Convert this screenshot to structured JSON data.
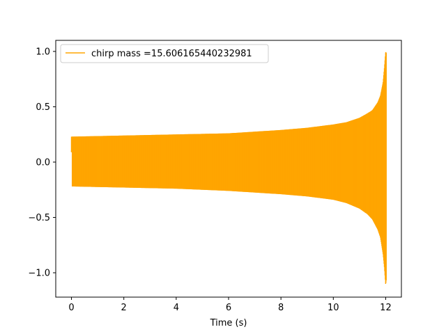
{
  "chart_data": {
    "type": "line",
    "title": "",
    "xlabel": "Time (s)",
    "ylabel": "",
    "xlim": [
      -0.6,
      12.6
    ],
    "ylim": [
      -1.22,
      1.1
    ],
    "x_ticks": [
      0,
      2,
      4,
      6,
      8,
      10,
      12
    ],
    "x_tick_labels": [
      "0",
      "2",
      "4",
      "6",
      "8",
      "10",
      "12"
    ],
    "y_ticks": [
      1.0,
      0.5,
      0.0,
      -0.5,
      -1.0
    ],
    "y_tick_labels": [
      "1.0",
      "0.5",
      "0.0",
      "−0.5",
      "−1.0"
    ],
    "grid": false,
    "legend": "upper-left",
    "series": [
      {
        "name": "chirp mass =15.606165440232981",
        "color": "#ffa500",
        "x_range": [
          0,
          12.03
        ],
        "envelope": {
          "t": [
            0,
            2,
            4,
            6,
            8,
            9,
            10,
            10.5,
            11,
            11.3,
            11.5,
            11.7,
            11.8,
            11.9,
            11.95,
            12.0,
            12.03
          ],
          "upper": [
            0.23,
            0.24,
            0.25,
            0.26,
            0.29,
            0.31,
            0.34,
            0.36,
            0.4,
            0.44,
            0.47,
            0.54,
            0.6,
            0.72,
            0.85,
            1.0,
            0.98
          ],
          "lower": [
            -0.22,
            -0.23,
            -0.24,
            -0.26,
            -0.29,
            -0.31,
            -0.34,
            -0.37,
            -0.42,
            -0.47,
            -0.52,
            -0.61,
            -0.68,
            -0.83,
            -0.95,
            -1.11,
            -1.05
          ]
        },
        "start_value": 0.09
      }
    ]
  }
}
